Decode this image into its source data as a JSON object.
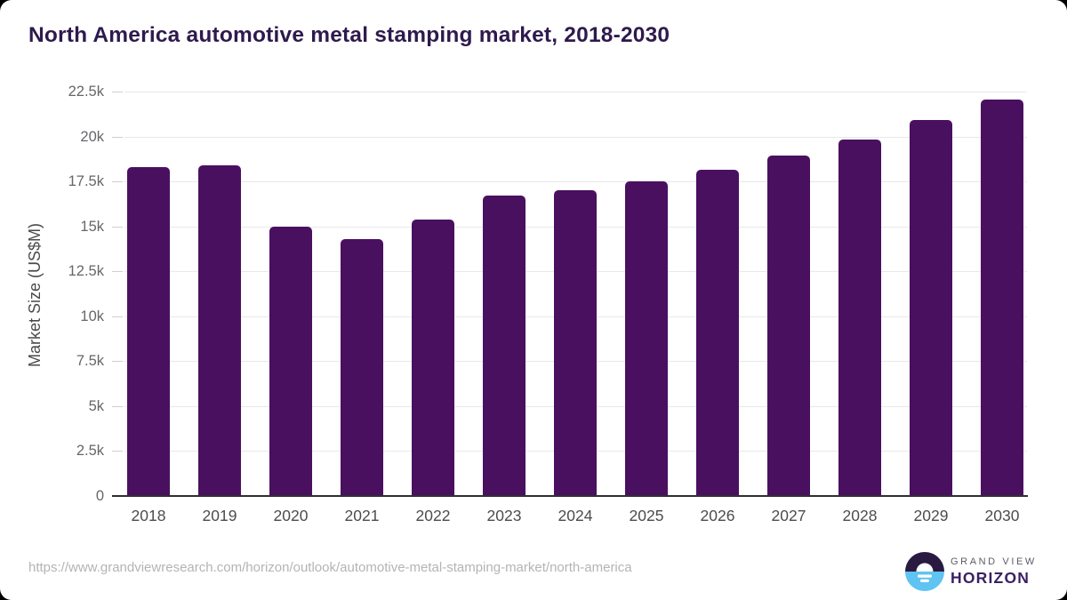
{
  "title": "North America automotive metal stamping market, 2018-2030",
  "chart_data": {
    "type": "bar",
    "title": "North America automotive metal stamping market, 2018-2030",
    "categories": [
      "2018",
      "2019",
      "2020",
      "2021",
      "2022",
      "2023",
      "2024",
      "2025",
      "2026",
      "2027",
      "2028",
      "2029",
      "2030"
    ],
    "values": [
      18300,
      18400,
      15000,
      14300,
      15400,
      16700,
      17000,
      17500,
      18150,
      18950,
      19850,
      20900,
      22050
    ],
    "xlabel": "",
    "ylabel": "Market Size (US$M)",
    "ylim": [
      0,
      22500
    ],
    "yticks": [
      {
        "label": "0",
        "value": 0
      },
      {
        "label": "2.5k",
        "value": 2500
      },
      {
        "label": "5k",
        "value": 5000
      },
      {
        "label": "7.5k",
        "value": 7500
      },
      {
        "label": "10k",
        "value": 10000
      },
      {
        "label": "12.5k",
        "value": 12500
      },
      {
        "label": "15k",
        "value": 15000
      },
      {
        "label": "17.5k",
        "value": 17500
      },
      {
        "label": "20k",
        "value": 20000
      },
      {
        "label": "22.5k",
        "value": 22500
      }
    ],
    "grid": "horizontal",
    "legend": "none",
    "bar_color": "#4a1060"
  },
  "footer": {
    "source_url": "https://www.grandviewresearch.com/horizon/outlook/automotive-metal-stamping-market/north-america",
    "logo": {
      "brand_top": "GRAND VIEW",
      "brand_bottom": "HORIZON",
      "colors": {
        "circle_top": "#2a1a41",
        "circle_bottom": "#5fc4f1",
        "brand_top_text": "#5e5a68",
        "brand_bottom_text": "#3a2063"
      }
    }
  },
  "colors": {
    "title_text": "#2e1a4d",
    "bar": "#4a1060",
    "gridline": "#e8e8ec",
    "axis_line": "#2f2f33",
    "ytick_text": "#66666b",
    "xtick_text": "#4c4c4f",
    "url_text": "#b4b4b6",
    "card_background": "#ffffff"
  }
}
